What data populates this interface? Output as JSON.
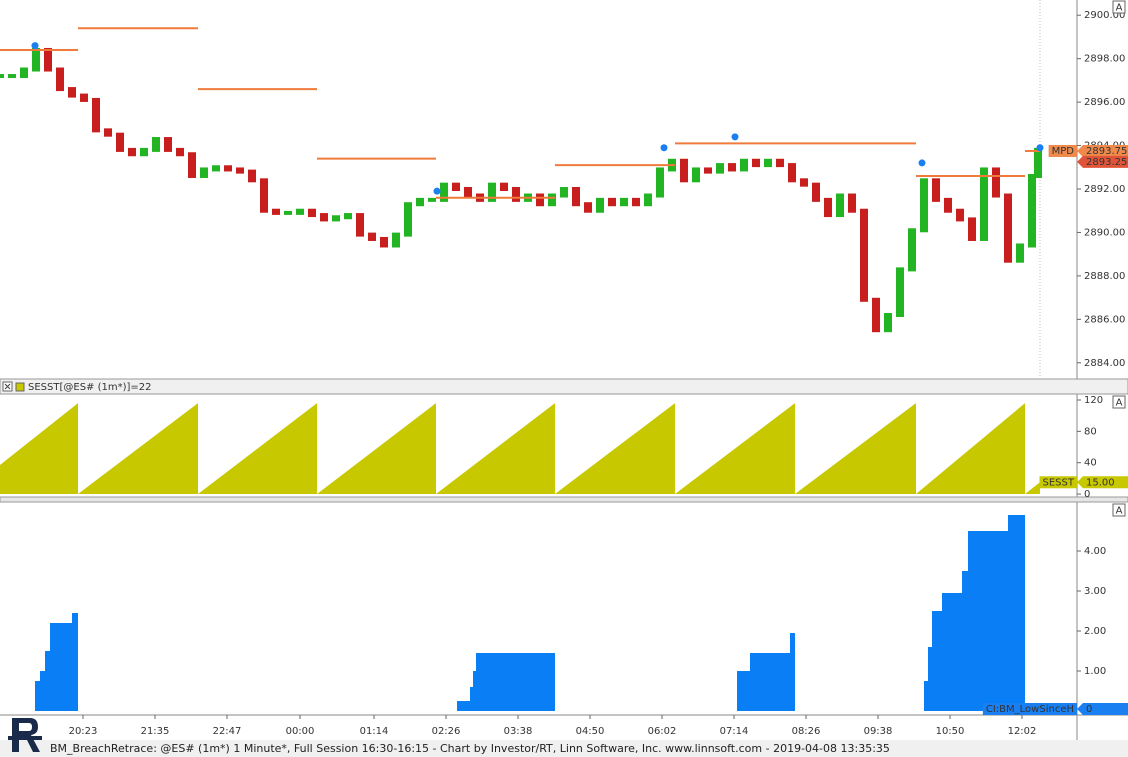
{
  "chart_data": [
    {
      "type": "line",
      "autoscale_label": "A",
      "xlim": [
        "19:00",
        "12:57"
      ],
      "x": [
        "19:00",
        "19:12",
        "19:24",
        "19:36",
        "19:48",
        "20:00",
        "20:12",
        "20:24",
        "20:36",
        "20:48",
        "21:00",
        "21:12",
        "21:24",
        "21:36",
        "21:48",
        "22:00",
        "22:12",
        "22:24",
        "22:36",
        "22:48",
        "23:00",
        "23:12",
        "23:24",
        "23:36",
        "23:48",
        "00:00",
        "00:12",
        "00:24",
        "00:36",
        "00:48",
        "01:00",
        "01:12",
        "01:24",
        "01:36",
        "01:48",
        "02:00",
        "02:12",
        "02:24",
        "02:36",
        "02:48",
        "03:00",
        "03:12",
        "03:24",
        "03:36",
        "03:48",
        "04:00",
        "04:12",
        "04:24",
        "04:36",
        "04:48",
        "05:00",
        "05:12",
        "05:24",
        "05:36",
        "05:48",
        "06:00",
        "06:12",
        "06:24",
        "06:36",
        "06:48",
        "07:00",
        "07:12",
        "07:24",
        "07:36",
        "07:48",
        "08:00",
        "08:12",
        "08:24",
        "08:36",
        "08:48",
        "09:00",
        "09:12",
        "09:24",
        "09:36",
        "09:48",
        "10:00",
        "10:12",
        "10:24",
        "10:36",
        "10:48",
        "11:00",
        "11:12",
        "11:24",
        "11:36",
        "11:48",
        "12:00",
        "12:12",
        "12:18"
      ],
      "values": [
        2897.2,
        2897.2,
        2897.5,
        2898.4,
        2897.5,
        2896.6,
        2896.3,
        2896.1,
        2894.7,
        2894.5,
        2893.8,
        2893.6,
        2893.8,
        2894.3,
        2893.8,
        2893.6,
        2892.6,
        2892.9,
        2893.0,
        2892.9,
        2892.8,
        2892.4,
        2891.0,
        2890.9,
        2890.9,
        2891.0,
        2890.8,
        2890.6,
        2890.7,
        2890.8,
        2889.9,
        2889.7,
        2889.4,
        2889.9,
        2891.3,
        2891.5,
        2891.5,
        2892.2,
        2892.0,
        2891.7,
        2891.5,
        2892.2,
        2892.0,
        2891.5,
        2891.7,
        2891.3,
        2891.7,
        2892.0,
        2891.3,
        2891.0,
        2891.5,
        2891.3,
        2891.5,
        2891.3,
        2891.7,
        2892.9,
        2893.3,
        2892.4,
        2892.9,
        2892.8,
        2893.1,
        2892.9,
        2893.3,
        2893.1,
        2893.3,
        2893.1,
        2892.4,
        2892.2,
        2891.5,
        2890.8,
        2891.7,
        2891.0,
        2886.9,
        2885.5,
        2886.2,
        2888.3,
        2890.1,
        2892.4,
        2891.5,
        2891.0,
        2890.6,
        2889.7,
        2892.9,
        2891.7,
        2888.7,
        2889.4,
        2892.6,
        2893.8
      ],
      "up_color": "#22b422",
      "down_color": "#c81e1e",
      "levels": {
        "color": "#f07a3c",
        "starts": [
          "19:00",
          "20:18",
          "22:18",
          "00:17",
          "02:16",
          "04:15",
          "06:15",
          "10:16",
          "12:05"
        ],
        "ends": [
          "20:18",
          "22:18",
          "00:17",
          "02:16",
          "04:15",
          "06:15",
          "10:16",
          "12:05",
          "12:20"
        ],
        "values": [
          2898.4,
          2899.4,
          2896.6,
          2893.4,
          2891.6,
          2893.1,
          2894.1,
          2892.6,
          2893.75
        ]
      },
      "pivots": {
        "color": "#1a7ff0",
        "x": [
          "19:35",
          "02:17",
          "06:04",
          "07:15",
          "10:22",
          "12:20"
        ],
        "values": [
          2898.6,
          2891.9,
          2893.9,
          2894.4,
          2893.2,
          2893.9
        ]
      },
      "tags": [
        {
          "name": "MPD",
          "value": 2893.75,
          "color": "#f08a4b"
        },
        {
          "value": 2893.25,
          "color": "#e0553a"
        }
      ],
      "ylim": [
        2883.3,
        2900.7
      ],
      "yticks": [
        {
          "value": 2884,
          "label": "2884.00"
        },
        {
          "value": 2886,
          "label": "2886.00"
        },
        {
          "value": 2888,
          "label": "2888.00"
        },
        {
          "value": 2890,
          "label": "2890.00"
        },
        {
          "value": 2892,
          "label": "2892.00"
        },
        {
          "value": 2894,
          "label": "2894.00"
        },
        {
          "value": 2896,
          "label": "2896.00"
        },
        {
          "value": 2898,
          "label": "2898.00"
        },
        {
          "value": 2900,
          "label": "2900.00"
        }
      ]
    },
    {
      "type": "area",
      "autoscale_label": "A",
      "header": "SESST[@ES# (1m*)]=22",
      "color": "#c8c800",
      "xlim": [
        "19:00",
        "12:57"
      ],
      "x": [
        "19:00",
        "20:18",
        "20:18",
        "22:18",
        "22:18",
        "00:17",
        "00:17",
        "02:16",
        "02:16",
        "04:15",
        "04:15",
        "06:15",
        "06:15",
        "08:15",
        "08:15",
        "10:16",
        "10:16",
        "12:05",
        "12:05",
        "12:20"
      ],
      "values": [
        37,
        116,
        0,
        116,
        0,
        116,
        0,
        116,
        0,
        116,
        0,
        116,
        0,
        116,
        0,
        116,
        0,
        116,
        0,
        15
      ],
      "tags": [
        {
          "name": "SESST",
          "value": 15,
          "value_label": "15.00",
          "color": "#c8c800"
        }
      ],
      "ylim": [
        -3.8,
        126.4
      ],
      "yticks": [
        0,
        40,
        80,
        120
      ]
    },
    {
      "type": "bar",
      "autoscale_label": "A",
      "color": "#0a7ff5",
      "xlim": [
        "19:00",
        "12:57"
      ],
      "starts": [
        "19:35",
        "19:40",
        "19:45",
        "19:50",
        "20:12",
        "02:37",
        "02:50",
        "02:53",
        "02:56",
        "07:17",
        "07:30",
        "08:10",
        "10:24",
        "10:28",
        "10:32",
        "10:42",
        "11:02",
        "11:08",
        "11:48"
      ],
      "ends": [
        "19:40",
        "19:45",
        "19:50",
        "20:12",
        "20:18",
        "02:50",
        "02:53",
        "02:56",
        "04:15",
        "07:30",
        "08:10",
        "08:15",
        "10:28",
        "10:32",
        "10:42",
        "11:02",
        "11:08",
        "11:48",
        "12:05"
      ],
      "values": [
        0.75,
        1.0,
        1.5,
        2.2,
        2.45,
        0.25,
        0.6,
        1.0,
        1.45,
        1.0,
        1.45,
        1.95,
        0.75,
        1.6,
        2.5,
        2.95,
        3.5,
        4.5,
        4.9
      ],
      "tags": [
        {
          "name": "CI:BM_LowSinceH",
          "value": 0,
          "color": "#1a7ff0"
        }
      ],
      "ylim": [
        -0.1,
        5.2
      ],
      "yticks": [
        {
          "value": 1,
          "label": "1.00"
        },
        {
          "value": 2,
          "label": "2.00"
        },
        {
          "value": 3,
          "label": "3.00"
        },
        {
          "value": 4,
          "label": "4.00"
        }
      ],
      "xticks": [
        "20:23",
        "21:35",
        "22:47",
        "00:00",
        "01:14",
        "02:26",
        "03:38",
        "04:50",
        "06:02",
        "07:14",
        "08:26",
        "09:38",
        "10:50",
        "12:02"
      ]
    }
  ],
  "status_bar": "BM_BreachRetrace: @ES# (1m*) 1 Minute*, Full Session 16:30-16:15 - Chart by Investor/RT, Linn Software, Inc. www.linnsoft.com - 2019-04-08 13:35:35"
}
